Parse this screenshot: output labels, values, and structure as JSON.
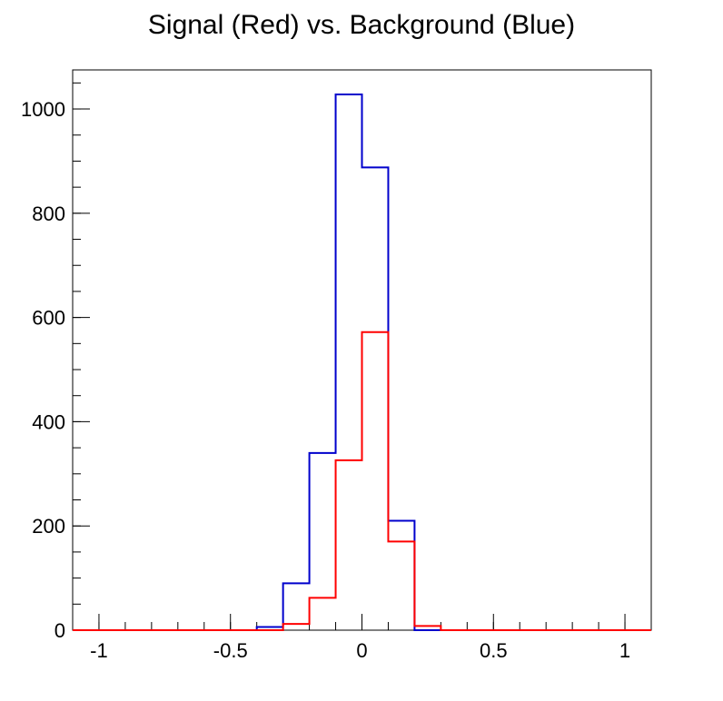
{
  "chart_data": {
    "type": "histogram-step",
    "title": "Signal (Red) vs. Background (Blue)",
    "xlabel": "",
    "ylabel": "",
    "xlim": [
      -1.1,
      1.1
    ],
    "ylim": [
      0,
      1075
    ],
    "x_ticks": [
      -1,
      -0.5,
      0,
      0.5,
      1
    ],
    "x_tick_labels": [
      "-1",
      "-0.5",
      "0",
      "0.5",
      "1"
    ],
    "y_ticks": [
      0,
      200,
      400,
      600,
      800,
      1000
    ],
    "y_tick_labels": [
      "0",
      "200",
      "400",
      "600",
      "800",
      "1000"
    ],
    "bin_edges": [
      -1.1,
      -1.0,
      -0.9,
      -0.8,
      -0.7,
      -0.6,
      -0.5,
      -0.4,
      -0.3,
      -0.2,
      -0.1,
      0.0,
      0.1,
      0.2,
      0.3,
      0.4,
      0.5,
      0.6,
      0.7,
      0.8,
      0.9,
      1.0,
      1.1
    ],
    "series": [
      {
        "color": "#0000cc",
        "values": [
          0,
          0,
          0,
          0,
          0,
          0,
          0,
          6,
          90,
          340,
          1028,
          888,
          210,
          0,
          0,
          0,
          0,
          0,
          0,
          0,
          0,
          0
        ]
      },
      {
        "color": "#ff0000",
        "values": [
          0,
          0,
          0,
          0,
          0,
          0,
          0,
          0,
          12,
          62,
          326,
          572,
          170,
          8,
          0,
          0,
          0,
          0,
          0,
          0,
          0,
          0
        ]
      }
    ],
    "grid": false,
    "legend": "none"
  }
}
